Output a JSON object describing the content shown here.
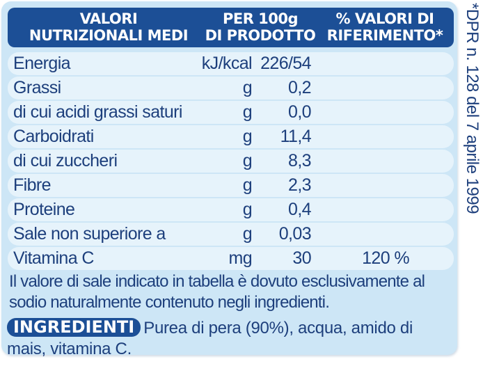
{
  "header": {
    "col_name": "VALORI\nNUTRIZIONALI MEDI",
    "col_per100g": "PER 100g\nDI PRODOTTO",
    "col_reference": "% VALORI DI\nRIFERIMENTO*"
  },
  "rows": [
    {
      "name": "Energia",
      "unit": "kJ/kcal",
      "value": "226/54",
      "reference": ""
    },
    {
      "name": "Grassi",
      "unit": "g",
      "value": "0,2",
      "reference": ""
    },
    {
      "name": "di cui acidi grassi saturi",
      "unit": "g",
      "value": "0,0",
      "reference": ""
    },
    {
      "name": "Carboidrati",
      "unit": "g",
      "value": "11,4",
      "reference": ""
    },
    {
      "name": "di cui zuccheri",
      "unit": "g",
      "value": "8,3",
      "reference": ""
    },
    {
      "name": "Fibre",
      "unit": "g",
      "value": "2,3",
      "reference": ""
    },
    {
      "name": "Proteine",
      "unit": "g",
      "value": "0,4",
      "reference": ""
    },
    {
      "name": "Sale non superiore a",
      "unit": "g",
      "value": "0,03",
      "reference": ""
    },
    {
      "name": "Vitamina C",
      "unit": "mg",
      "value": "30",
      "reference": "120 %"
    }
  ],
  "salt_note": "Il valore di sale indicato in tabella è dovuto esclusivamente al sodio naturalmente contenuto negli ingredienti.",
  "ingredients": {
    "label": "INGREDIENTI",
    "text": "Purea di pera (90%), acqua, amido di mais, vitamina C."
  },
  "side_note": "*DPR n. 128 del 7 aprile 1999",
  "colors": {
    "header_bg": "#1c4f96",
    "panel_bg": "#cde6f6",
    "row_bg": "#e6f3fb",
    "text": "#1d3f7c"
  }
}
